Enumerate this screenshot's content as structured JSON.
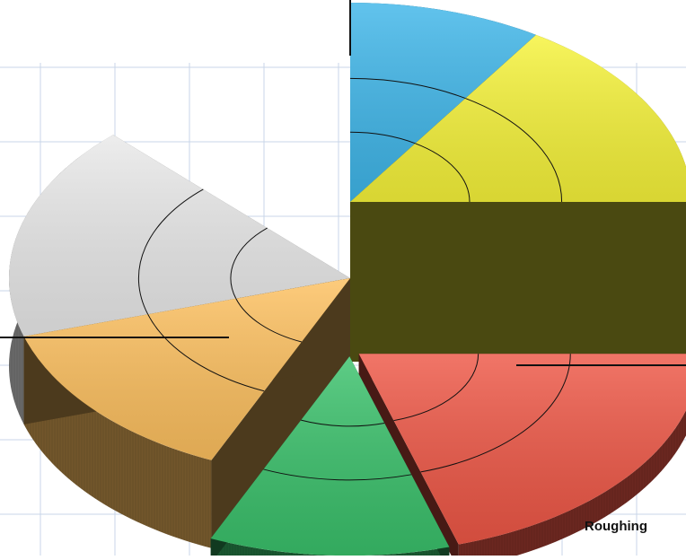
{
  "chart_data": {
    "type": "pie",
    "variant": "3d-exploded-tiered",
    "title": "",
    "caption": "Roughing",
    "legend": "none",
    "grid": true,
    "slices": [
      {
        "color": "#3FB6E9",
        "start_deg": -90,
        "end_deg": -57,
        "height_level": 3,
        "exploded": false
      },
      {
        "color": "#F6F33A",
        "start_deg": -57,
        "end_deg": 0,
        "height_level": 3,
        "exploded": false
      },
      {
        "color": "#EE5746",
        "start_deg": 0,
        "end_deg": 73,
        "height_level": 1,
        "exploded": true
      },
      {
        "color": "#3AC16B",
        "start_deg": 73,
        "end_deg": 114,
        "height_level": 1,
        "exploded": true
      },
      {
        "color": "#FDC05F",
        "start_deg": 114,
        "end_deg": 163,
        "height_level": 2,
        "exploded": false
      },
      {
        "color": "#E9E9E9",
        "start_deg": 163,
        "end_deg": 226,
        "height_level": 2,
        "exploded": false
      }
    ]
  }
}
